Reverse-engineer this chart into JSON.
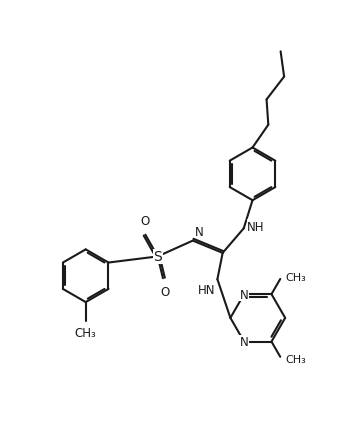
{
  "background": "#ffffff",
  "line_color": "#1a1a1a",
  "line_width": 1.5,
  "font_size": 8.5,
  "fig_width": 3.54,
  "fig_height": 4.27,
  "dpi": 100,
  "xlim": [
    0,
    10
  ],
  "ylim": [
    0,
    12
  ]
}
